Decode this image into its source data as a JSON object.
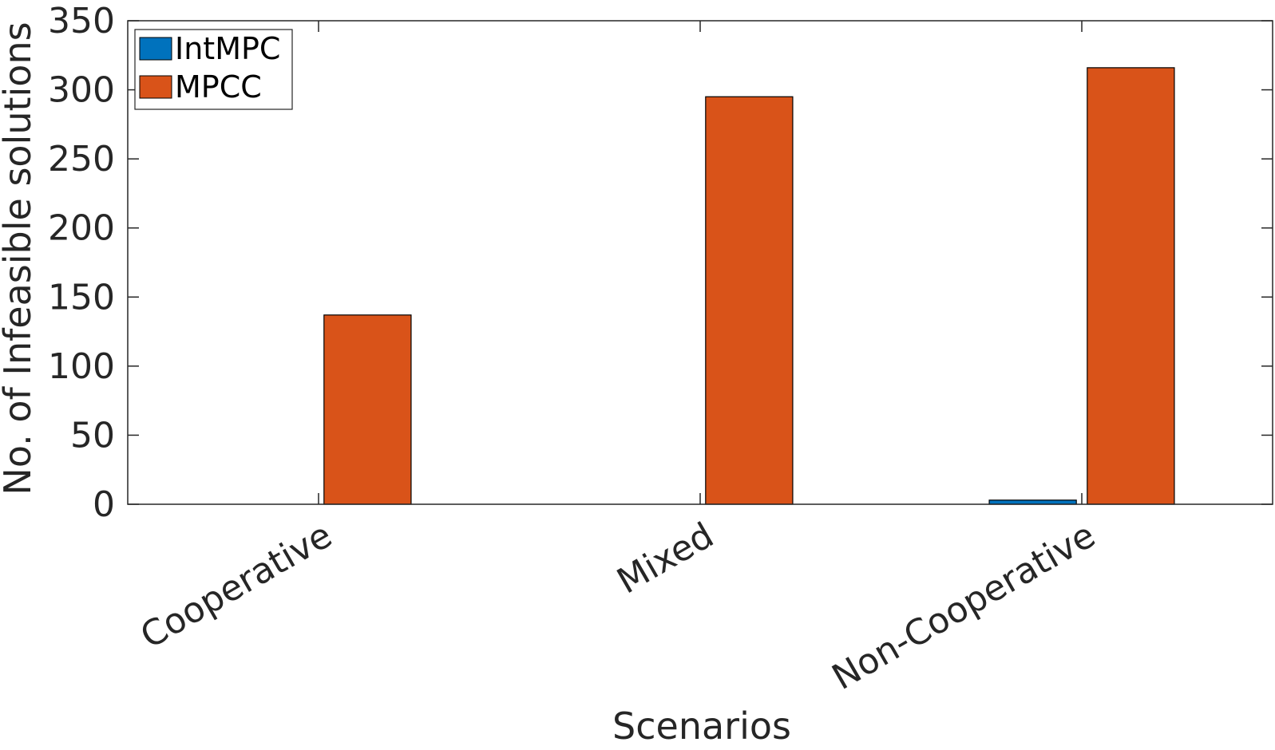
{
  "chart_data": {
    "type": "bar",
    "title": "",
    "xlabel": "Scenarios",
    "ylabel": "No. of Infeasible solutions",
    "categories": [
      "Cooperative",
      "Mixed",
      "Non-Cooperative"
    ],
    "series": [
      {
        "name": "IntMPC",
        "values": [
          0,
          0,
          3
        ],
        "color": "#0072BD"
      },
      {
        "name": "MPCC",
        "values": [
          137,
          295,
          316
        ],
        "color": "#D95319"
      }
    ],
    "ylim": [
      0,
      350
    ],
    "yticks": [
      "0",
      "50",
      "100",
      "150",
      "200",
      "250",
      "300",
      "350"
    ],
    "grid": false,
    "legend_position": "top-left"
  }
}
